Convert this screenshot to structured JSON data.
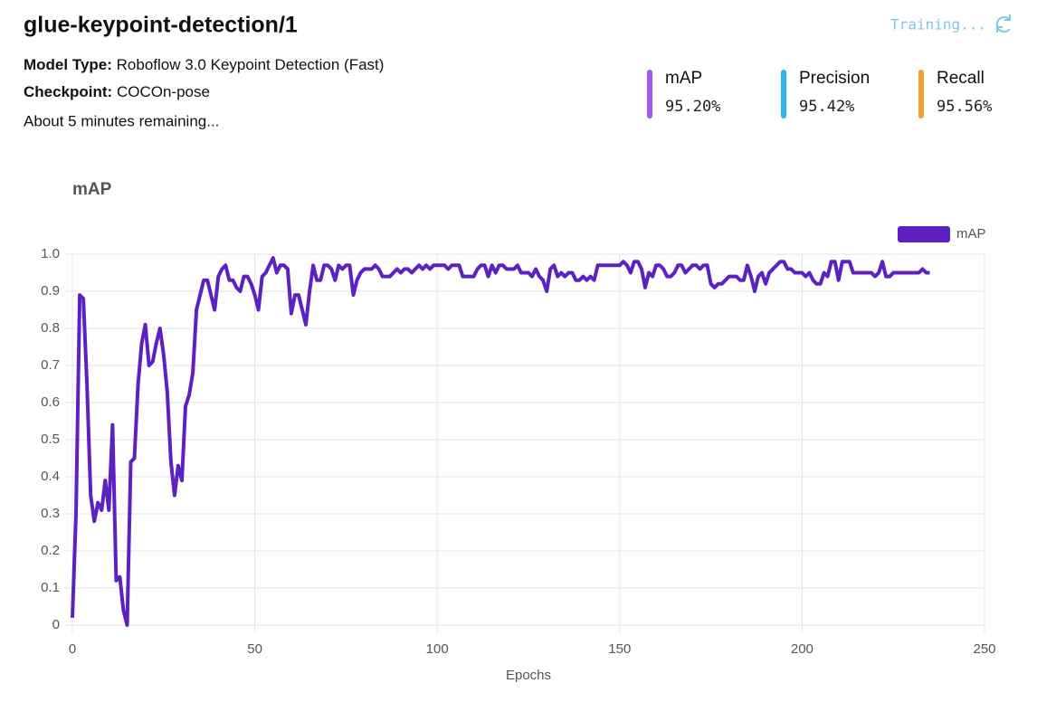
{
  "header": {
    "title": "glue-keypoint-detection/1",
    "status": "Training...",
    "details": [
      {
        "label": "Model Type:",
        "value": "Roboflow 3.0 Keypoint Detection (Fast)"
      },
      {
        "label": "Checkpoint:",
        "value": "COCOn-pose"
      }
    ],
    "remaining": "About 5 minutes remaining..."
  },
  "metrics": [
    {
      "name": "mAP",
      "value": "95.20%",
      "color": "#9b59f0"
    },
    {
      "name": "Precision",
      "value": "95.42%",
      "color": "#2bb5e8"
    },
    {
      "name": "Recall",
      "value": "95.56%",
      "color": "#f0a030"
    }
  ],
  "chart_data": {
    "type": "line",
    "title": "mAP",
    "x_label": "Epochs",
    "xlim": [
      0,
      250
    ],
    "xticks": [
      0,
      50,
      100,
      150,
      200,
      250
    ],
    "ylim": [
      0,
      1
    ],
    "yticks": [
      0,
      0.1,
      0.2,
      0.3,
      0.4,
      0.5,
      0.6,
      0.7,
      0.8,
      0.9,
      {
        "value": 1,
        "label": "1.0"
      }
    ],
    "grid": true,
    "legend": "top-right",
    "x": [
      0,
      1,
      2,
      3,
      4,
      5,
      6,
      7,
      8,
      9,
      10,
      11,
      12,
      13,
      14,
      15,
      16,
      17,
      18,
      19,
      20,
      21,
      22,
      23,
      24,
      25,
      26,
      27,
      28,
      29,
      30,
      31,
      32,
      33,
      34,
      35,
      36,
      37,
      38,
      39,
      40,
      41,
      42,
      43,
      44,
      45,
      46,
      47,
      48,
      49,
      50,
      51,
      52,
      53,
      54,
      55,
      56,
      57,
      58,
      59,
      60,
      61,
      62,
      63,
      64,
      65,
      66,
      67,
      68,
      69,
      70,
      71,
      72,
      73,
      74,
      75,
      76,
      77,
      78,
      79,
      80,
      81,
      82,
      83,
      84,
      85,
      86,
      87,
      88,
      89,
      90,
      91,
      92,
      93,
      94,
      95,
      96,
      97,
      98,
      99,
      100,
      101,
      102,
      103,
      104,
      105,
      106,
      107,
      108,
      109,
      110,
      111,
      112,
      113,
      114,
      115,
      116,
      117,
      118,
      119,
      120,
      121,
      122,
      123,
      124,
      125,
      126,
      127,
      128,
      129,
      130,
      131,
      132,
      133,
      134,
      135,
      136,
      137,
      138,
      139,
      140,
      141,
      142,
      143,
      144,
      145,
      146,
      147,
      148,
      149,
      150,
      151,
      152,
      153,
      154,
      155,
      156,
      157,
      158,
      159,
      160,
      161,
      162,
      163,
      164,
      165,
      166,
      167,
      168,
      169,
      170,
      171,
      172,
      173,
      174,
      175,
      176,
      177,
      178,
      179,
      180,
      181,
      182,
      183,
      184,
      185,
      186,
      187,
      188,
      189,
      190,
      191,
      192,
      193,
      194,
      195,
      196,
      197,
      198,
      199,
      200,
      201,
      202,
      203,
      204,
      205,
      206,
      207,
      208,
      209,
      210,
      211,
      212,
      213,
      214,
      215,
      216,
      217,
      218,
      219,
      220,
      221,
      222,
      223,
      224,
      225,
      226,
      227,
      228,
      229,
      230,
      231,
      232,
      233,
      234,
      235
    ],
    "series": [
      {
        "name": "mAP",
        "color": "#5b21c2",
        "values": [
          0.02,
          0.3,
          0.89,
          0.88,
          0.65,
          0.35,
          0.28,
          0.33,
          0.31,
          0.39,
          0.31,
          0.54,
          0.12,
          0.13,
          0.04,
          0.0,
          0.44,
          0.45,
          0.65,
          0.76,
          0.81,
          0.7,
          0.71,
          0.76,
          0.8,
          0.73,
          0.63,
          0.44,
          0.35,
          0.43,
          0.39,
          0.59,
          0.62,
          0.68,
          0.85,
          0.89,
          0.93,
          0.93,
          0.89,
          0.85,
          0.94,
          0.96,
          0.97,
          0.93,
          0.93,
          0.91,
          0.9,
          0.94,
          0.94,
          0.92,
          0.89,
          0.85,
          0.94,
          0.95,
          0.97,
          0.99,
          0.95,
          0.97,
          0.97,
          0.96,
          0.84,
          0.89,
          0.89,
          0.85,
          0.81,
          0.9,
          0.97,
          0.93,
          0.93,
          0.97,
          0.97,
          0.96,
          0.93,
          0.97,
          0.96,
          0.97,
          0.97,
          0.89,
          0.93,
          0.95,
          0.96,
          0.96,
          0.96,
          0.97,
          0.96,
          0.94,
          0.94,
          0.94,
          0.95,
          0.96,
          0.95,
          0.96,
          0.96,
          0.95,
          0.96,
          0.97,
          0.96,
          0.97,
          0.96,
          0.97,
          0.97,
          0.97,
          0.97,
          0.96,
          0.97,
          0.97,
          0.97,
          0.94,
          0.94,
          0.94,
          0.94,
          0.96,
          0.97,
          0.97,
          0.94,
          0.97,
          0.95,
          0.97,
          0.97,
          0.96,
          0.96,
          0.96,
          0.97,
          0.95,
          0.95,
          0.95,
          0.94,
          0.96,
          0.94,
          0.93,
          0.9,
          0.96,
          0.97,
          0.94,
          0.95,
          0.94,
          0.95,
          0.95,
          0.93,
          0.93,
          0.94,
          0.93,
          0.94,
          0.93,
          0.97,
          0.97,
          0.97,
          0.97,
          0.97,
          0.97,
          0.97,
          0.98,
          0.97,
          0.95,
          0.98,
          0.98,
          0.96,
          0.91,
          0.95,
          0.94,
          0.97,
          0.97,
          0.96,
          0.94,
          0.94,
          0.95,
          0.97,
          0.97,
          0.95,
          0.96,
          0.97,
          0.97,
          0.96,
          0.97,
          0.97,
          0.92,
          0.91,
          0.92,
          0.92,
          0.93,
          0.94,
          0.94,
          0.94,
          0.93,
          0.93,
          0.97,
          0.94,
          0.9,
          0.94,
          0.95,
          0.92,
          0.95,
          0.96,
          0.97,
          0.98,
          0.98,
          0.96,
          0.96,
          0.95,
          0.95,
          0.95,
          0.94,
          0.95,
          0.93,
          0.92,
          0.92,
          0.95,
          0.94,
          0.98,
          0.98,
          0.93,
          0.98,
          0.98,
          0.98,
          0.95,
          0.95,
          0.95,
          0.95,
          0.95,
          0.95,
          0.94,
          0.95,
          0.98,
          0.94,
          0.94,
          0.95,
          0.95,
          0.95,
          0.95,
          0.95,
          0.95,
          0.95,
          0.95,
          0.96,
          0.95,
          0.95
        ]
      }
    ]
  }
}
